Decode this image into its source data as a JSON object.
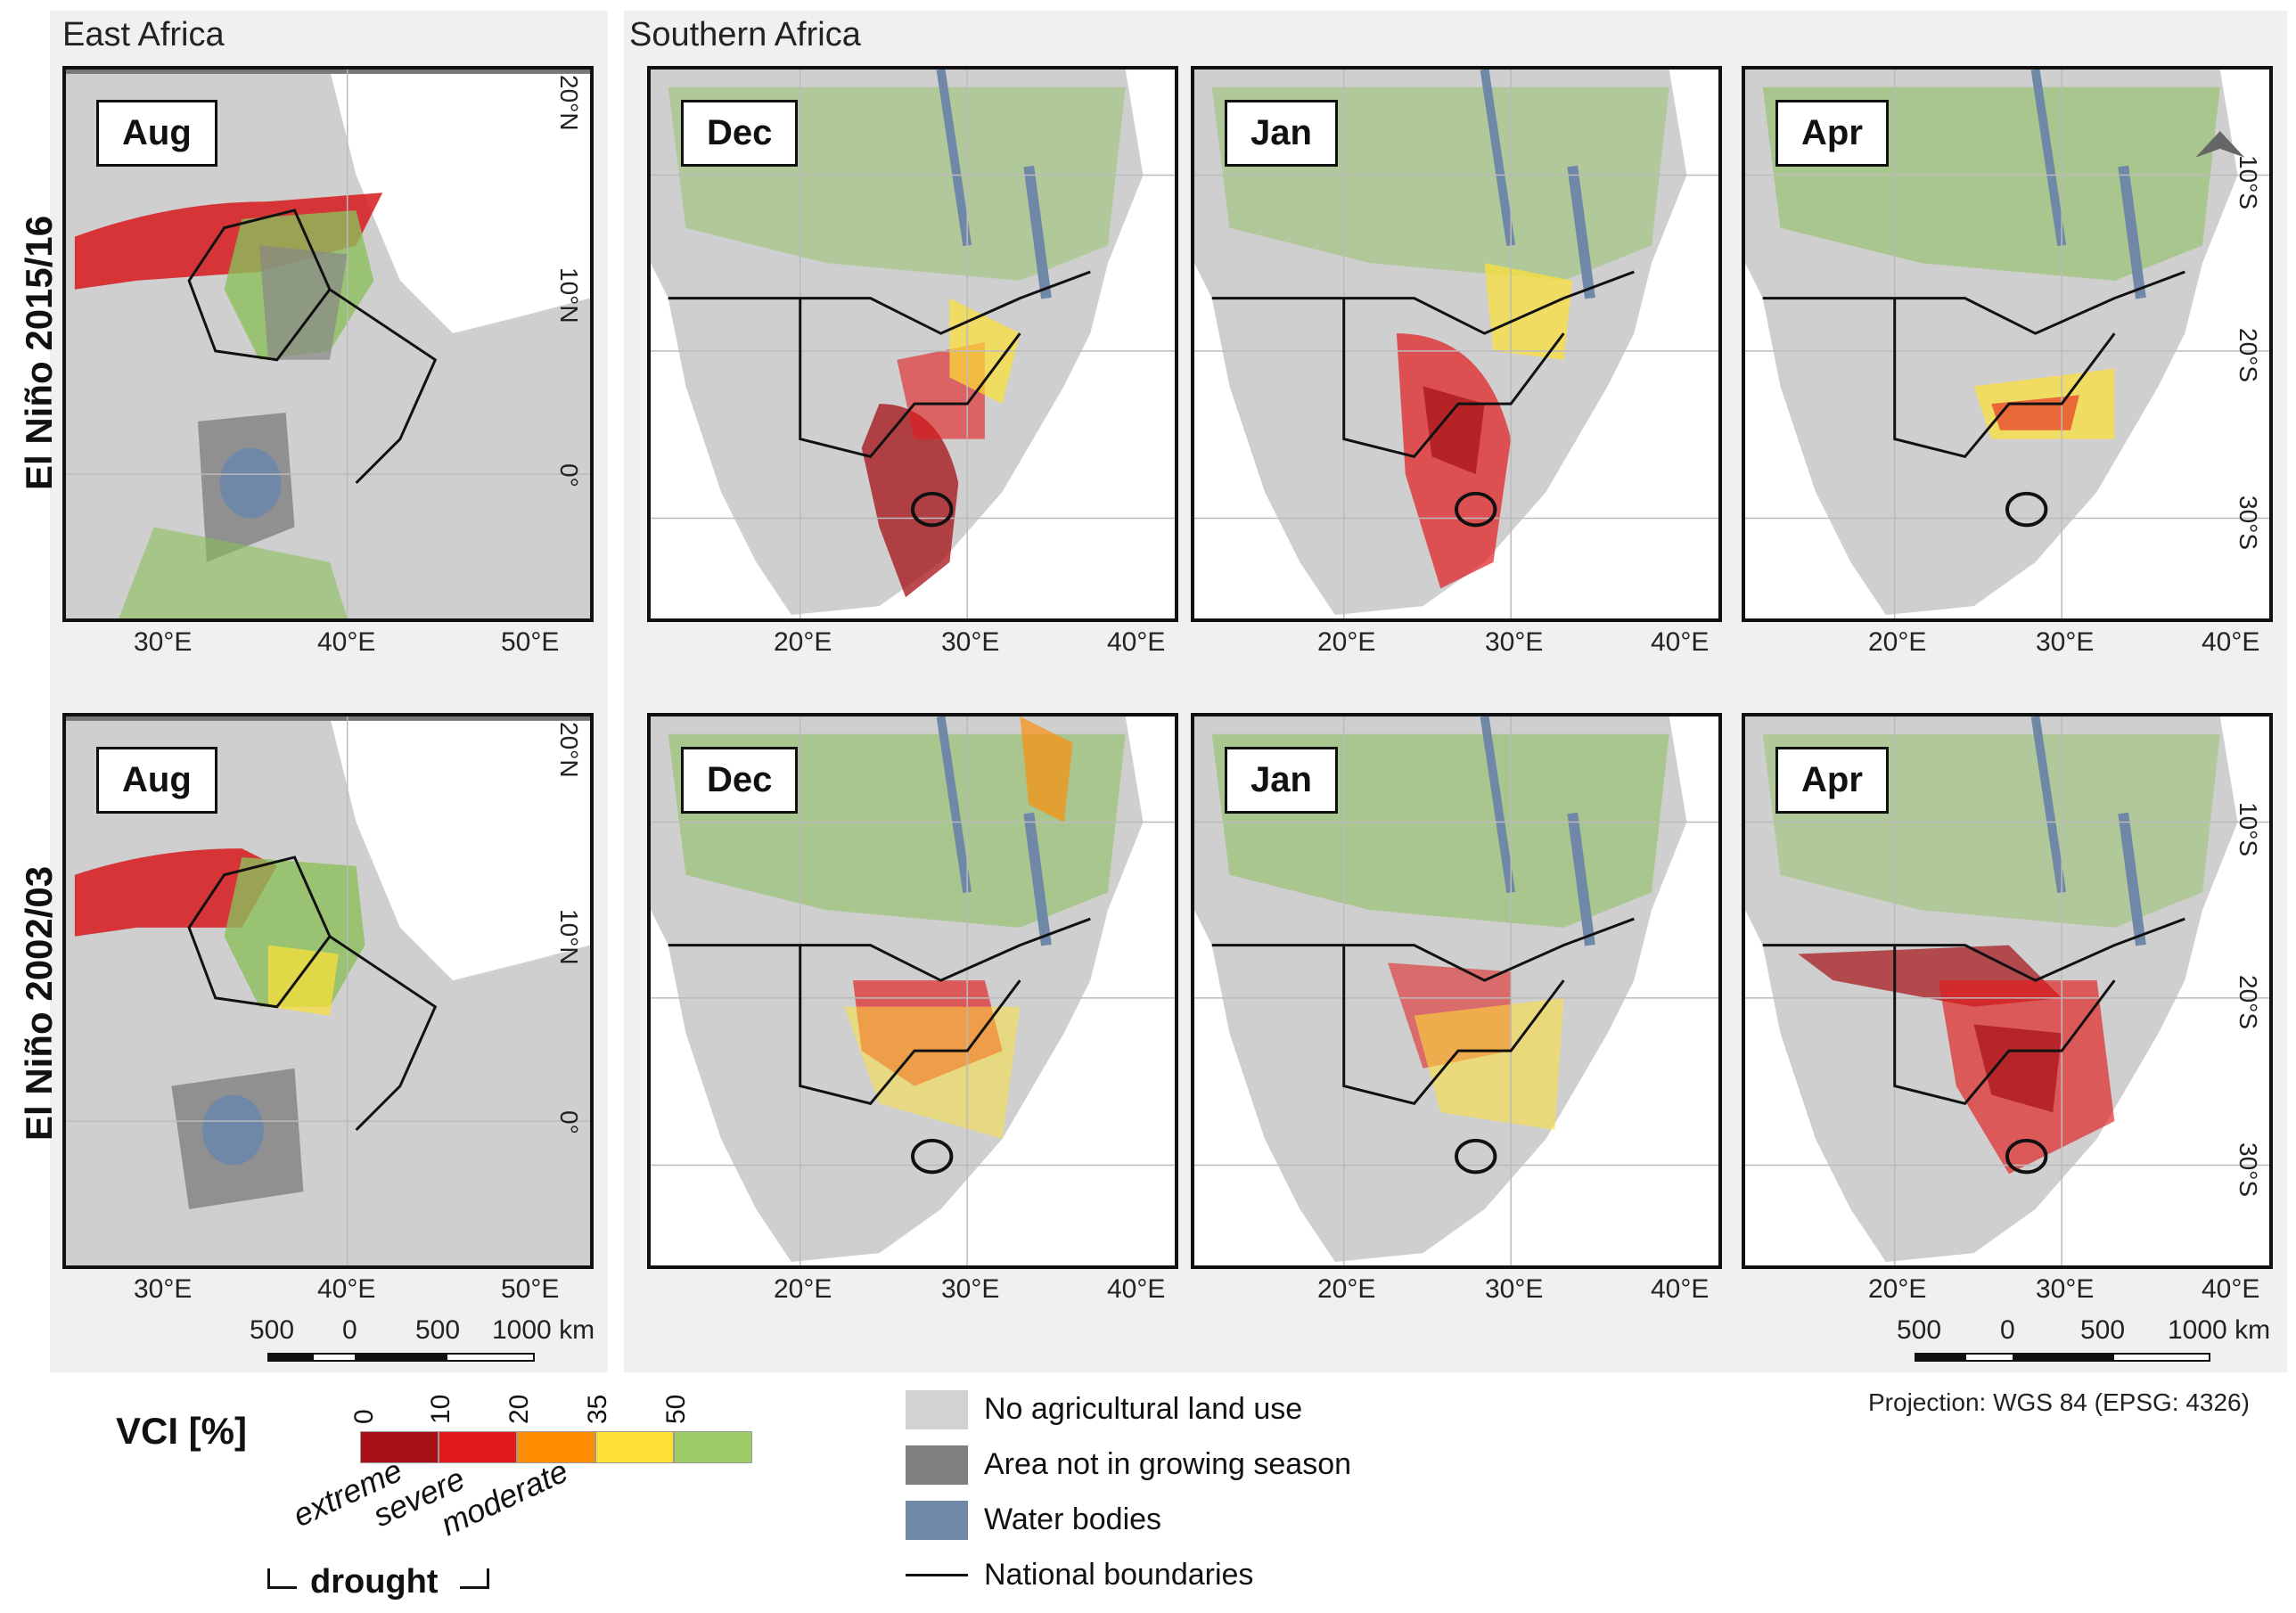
{
  "regions": {
    "east": "East Africa",
    "south": "Southern Africa"
  },
  "rows": [
    {
      "label": "El Niño 2015/16",
      "east_month": "Aug",
      "south_months": [
        "Dec",
        "Jan",
        "Apr"
      ]
    },
    {
      "label": "El Niño 2002/03",
      "east_month": "Aug",
      "south_months": [
        "Dec",
        "Jan",
        "Apr"
      ]
    }
  ],
  "east_axis": {
    "x_ticks": [
      "30°E",
      "40°E",
      "50°E"
    ],
    "y_ticks": [
      "20°N",
      "10°N",
      "0°"
    ]
  },
  "south_axis": {
    "x_ticks": [
      "20°E",
      "30°E",
      "40°E"
    ],
    "y_ticks": [
      "10°S",
      "20°S",
      "30°S"
    ]
  },
  "scale_bar": {
    "labels": [
      "500",
      "0",
      "500",
      "1000 km"
    ]
  },
  "projection": "Projection: WGS 84 (EPSG: 4326)",
  "vci_legend": {
    "title": "VCI [%]",
    "ticks": [
      "0",
      "10",
      "20",
      "35",
      "50"
    ],
    "colors": [
      "#a50f15",
      "#e31a1c",
      "#ff8c00",
      "#ffe135",
      "#9ccc65"
    ],
    "categories": [
      "extreme",
      "severe",
      "moderate"
    ],
    "group_label": "drought"
  },
  "legend": {
    "items": [
      {
        "label": "No agricultural land use",
        "color": "#d2d2d2"
      },
      {
        "label": "Area not in growing season",
        "color": "#7f7f7f"
      },
      {
        "label": "Water bodies",
        "color": "#7088a8"
      },
      {
        "label": "National boundaries",
        "color": "#111111"
      }
    ]
  }
}
